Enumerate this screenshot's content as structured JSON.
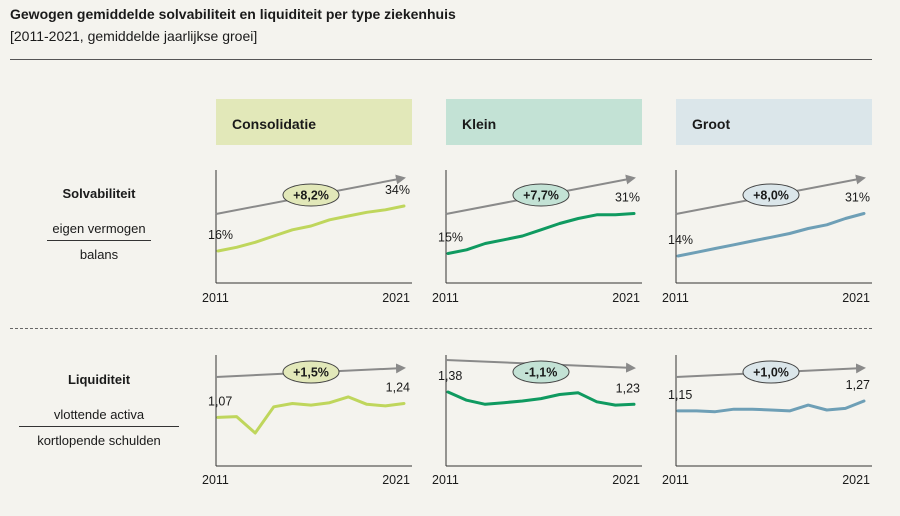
{
  "title": "Gewogen gemiddelde solvabiliteit en liquiditeit per type ziekenhuis",
  "subtitle": "[2011-2021, gemiddelde jaarlijkse groei]",
  "columns": [
    {
      "label": "Consolidatie",
      "header_color": "#e2e8b9",
      "line_color": "#bfd65c"
    },
    {
      "label": "Klein",
      "header_color": "#c3e2d5",
      "line_color": "#0f9a60"
    },
    {
      "label": "Groot",
      "header_color": "#dbe6ea",
      "line_color": "#6e9fb6"
    }
  ],
  "rows": [
    {
      "name": "Solvabiliteit",
      "numerator": "eigen vermogen",
      "denominator": "balans"
    },
    {
      "name": "Liquiditeit",
      "numerator": "vlottende activa",
      "denominator": "kortlopende schulden"
    }
  ],
  "chart_data": [
    {
      "type": "line",
      "row": "Solvabiliteit",
      "column": "Consolidatie",
      "x": [
        2011,
        2012,
        2013,
        2014,
        2015,
        2016,
        2017,
        2018,
        2019,
        2020,
        2021
      ],
      "values": [
        16,
        17.5,
        19.5,
        22,
        24.5,
        26,
        28.5,
        30,
        31.5,
        32.5,
        34
      ],
      "start_label": "16%",
      "end_label": "34%",
      "growth_label": "+8,2%",
      "trend": "up",
      "xstart_label": "2011",
      "xend_label": "2021"
    },
    {
      "type": "line",
      "row": "Solvabiliteit",
      "column": "Klein",
      "x": [
        2011,
        2012,
        2013,
        2014,
        2015,
        2016,
        2017,
        2018,
        2019,
        2020,
        2021
      ],
      "values": [
        15,
        16.5,
        19,
        20.5,
        22,
        24.5,
        27,
        29,
        30.5,
        30.5,
        31
      ],
      "start_label": "15%",
      "end_label": "31%",
      "growth_label": "+7,7%",
      "trend": "up",
      "xstart_label": "2011",
      "xend_label": "2021"
    },
    {
      "type": "line",
      "row": "Solvabiliteit",
      "column": "Groot",
      "x": [
        2011,
        2012,
        2013,
        2014,
        2015,
        2016,
        2017,
        2018,
        2019,
        2020,
        2021
      ],
      "values": [
        14,
        15.5,
        17,
        18.5,
        20,
        21.5,
        23,
        25,
        26.5,
        29,
        31
      ],
      "start_label": "14%",
      "end_label": "31%",
      "growth_label": "+8,0%",
      "trend": "up",
      "xstart_label": "2011",
      "xend_label": "2021"
    },
    {
      "type": "line",
      "row": "Liquiditeit",
      "column": "Consolidatie",
      "x": [
        2011,
        2012,
        2013,
        2014,
        2015,
        2016,
        2017,
        2018,
        2019,
        2020,
        2021
      ],
      "values": [
        1.07,
        1.08,
        0.88,
        1.2,
        1.24,
        1.22,
        1.25,
        1.32,
        1.23,
        1.21,
        1.24
      ],
      "start_label": "1,07",
      "end_label": "1,24",
      "growth_label": "+1,5%",
      "trend": "up",
      "xstart_label": "2011",
      "xend_label": "2021"
    },
    {
      "type": "line",
      "row": "Liquiditeit",
      "column": "Klein",
      "x": [
        2011,
        2012,
        2013,
        2014,
        2015,
        2016,
        2017,
        2018,
        2019,
        2020,
        2021
      ],
      "values": [
        1.38,
        1.28,
        1.23,
        1.25,
        1.27,
        1.3,
        1.35,
        1.37,
        1.26,
        1.22,
        1.23
      ],
      "start_label": "1,38",
      "end_label": "1,23",
      "growth_label": "-1,1%",
      "trend": "down",
      "xstart_label": "2011",
      "xend_label": "2021"
    },
    {
      "type": "line",
      "row": "Liquiditeit",
      "column": "Groot",
      "x": [
        2011,
        2012,
        2013,
        2014,
        2015,
        2016,
        2017,
        2018,
        2019,
        2020,
        2021
      ],
      "values": [
        1.15,
        1.15,
        1.14,
        1.17,
        1.17,
        1.16,
        1.15,
        1.22,
        1.16,
        1.18,
        1.27
      ],
      "start_label": "1,15",
      "end_label": "1,27",
      "growth_label": "+1,0%",
      "trend": "up",
      "xstart_label": "2011",
      "xend_label": "2021"
    }
  ]
}
